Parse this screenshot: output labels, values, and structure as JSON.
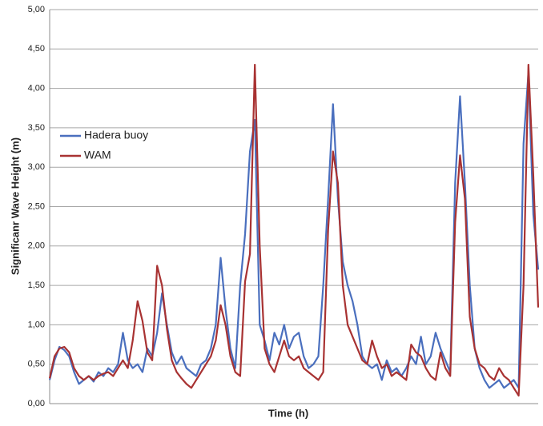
{
  "chart_data": {
    "type": "line",
    "xlabel": "Time (h)",
    "ylabel": "Significanr Wave Height (m)",
    "categories": [
      null,
      null,
      null,
      null,
      null,
      null,
      null,
      null,
      null,
      null,
      null,
      null,
      null,
      null,
      null,
      null,
      null,
      null,
      null,
      null,
      null,
      null,
      null,
      null,
      null,
      null,
      null,
      null,
      null,
      null,
      null,
      null,
      null,
      null,
      null,
      null,
      null,
      null,
      null,
      null,
      null,
      null,
      null,
      null,
      null,
      null,
      null,
      null,
      null,
      null,
      null,
      null,
      null,
      null,
      null,
      null,
      null,
      null,
      null,
      null,
      null,
      null,
      null,
      null,
      null,
      null,
      null,
      null,
      null,
      null,
      null,
      null,
      null,
      null,
      null,
      null,
      null,
      null,
      null,
      null,
      null,
      null,
      null,
      null,
      null,
      null,
      null,
      null,
      null,
      null,
      null,
      null,
      null,
      null,
      null,
      null,
      null,
      null,
      null,
      null,
      null
    ],
    "series": [
      {
        "name": "Hadera buoy",
        "color": "#4a6fbe",
        "values": [
          0.3,
          0.55,
          0.72,
          0.68,
          0.6,
          0.4,
          0.25,
          0.3,
          0.35,
          0.28,
          0.4,
          0.35,
          0.45,
          0.4,
          0.5,
          0.9,
          0.55,
          0.45,
          0.5,
          0.4,
          0.7,
          0.6,
          0.9,
          1.4,
          1.0,
          0.65,
          0.5,
          0.6,
          0.45,
          0.4,
          0.35,
          0.5,
          0.55,
          0.7,
          1.0,
          1.85,
          1.2,
          0.7,
          0.45,
          1.5,
          2.15,
          3.2,
          3.6,
          1.0,
          0.8,
          0.55,
          0.9,
          0.75,
          1.0,
          0.7,
          0.85,
          0.9,
          0.6,
          0.45,
          0.5,
          0.6,
          1.5,
          2.6,
          3.8,
          2.6,
          1.8,
          1.5,
          1.3,
          1.0,
          0.6,
          0.5,
          0.45,
          0.5,
          0.3,
          0.55,
          0.4,
          0.45,
          0.35,
          0.45,
          0.6,
          0.5,
          0.85,
          0.5,
          0.6,
          0.9,
          0.7,
          0.55,
          0.4,
          2.8,
          3.9,
          2.8,
          1.5,
          0.7,
          0.45,
          0.3,
          0.2,
          0.25,
          0.3,
          0.2,
          0.25,
          0.3,
          0.2,
          3.3,
          4.2,
          2.4,
          1.7
        ]
      },
      {
        "name": "WAM",
        "color": "#a83232",
        "values": [
          0.32,
          0.6,
          0.7,
          0.72,
          0.65,
          0.45,
          0.35,
          0.3,
          0.35,
          0.3,
          0.35,
          0.38,
          0.4,
          0.35,
          0.45,
          0.55,
          0.45,
          0.8,
          1.3,
          1.05,
          0.65,
          0.55,
          1.75,
          1.5,
          0.95,
          0.55,
          0.4,
          0.32,
          0.25,
          0.2,
          0.3,
          0.4,
          0.5,
          0.6,
          0.8,
          1.25,
          1.0,
          0.6,
          0.4,
          0.35,
          1.55,
          1.9,
          4.3,
          2.0,
          0.7,
          0.5,
          0.4,
          0.6,
          0.8,
          0.6,
          0.55,
          0.6,
          0.45,
          0.4,
          0.35,
          0.3,
          0.4,
          2.2,
          3.2,
          2.8,
          1.5,
          1.0,
          0.85,
          0.7,
          0.55,
          0.5,
          0.8,
          0.6,
          0.45,
          0.5,
          0.35,
          0.4,
          0.35,
          0.3,
          0.75,
          0.65,
          0.6,
          0.45,
          0.35,
          0.3,
          0.65,
          0.45,
          0.35,
          2.3,
          3.15,
          2.6,
          1.1,
          0.7,
          0.5,
          0.45,
          0.35,
          0.3,
          0.45,
          0.35,
          0.3,
          0.2,
          0.1,
          1.5,
          4.3,
          2.9,
          1.22
        ]
      }
    ],
    "ylim": [
      0,
      5
    ],
    "yticks": [
      {
        "value": 0,
        "label": "0,00"
      },
      {
        "value": 0.5,
        "label": "0,50"
      },
      {
        "value": 1,
        "label": "1,00"
      },
      {
        "value": 1.5,
        "label": "1,50"
      },
      {
        "value": 2,
        "label": "2,00"
      },
      {
        "value": 2.5,
        "label": "2,50"
      },
      {
        "value": 3,
        "label": "3,00"
      },
      {
        "value": 3.5,
        "label": "3,50"
      },
      {
        "value": 4,
        "label": "4,00"
      },
      {
        "value": 4.5,
        "label": "4,50"
      },
      {
        "value": 5,
        "label": "5,00"
      }
    ],
    "grid": true,
    "legend": "left"
  }
}
